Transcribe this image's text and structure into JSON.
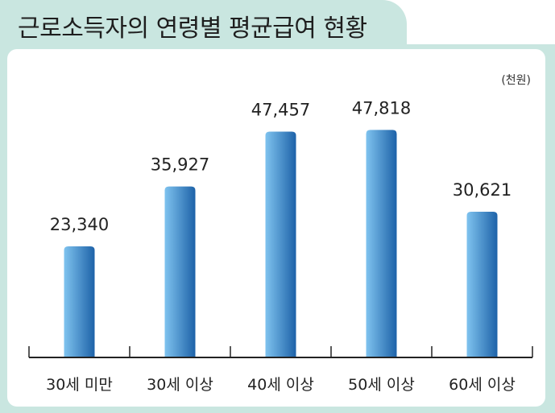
{
  "chart_data": {
    "type": "bar",
    "title": "근로소득자의 연령별 평균급여 현황",
    "unit": "(천원)",
    "categories": [
      "30세 미만",
      "30세 이상",
      "40세 이상",
      "50세 이상",
      "60세 이상"
    ],
    "values": [
      23340,
      35927,
      47457,
      47818,
      30621
    ],
    "value_labels": [
      "23,340",
      "35,927",
      "47,457",
      "47,818",
      "30,621"
    ],
    "ylim": [
      0,
      52000
    ],
    "colors": {
      "bar_light": "#7fc3ef",
      "bar_dark": "#1d62a8",
      "panel": "#c9e6e0",
      "axis": "#222222"
    }
  }
}
